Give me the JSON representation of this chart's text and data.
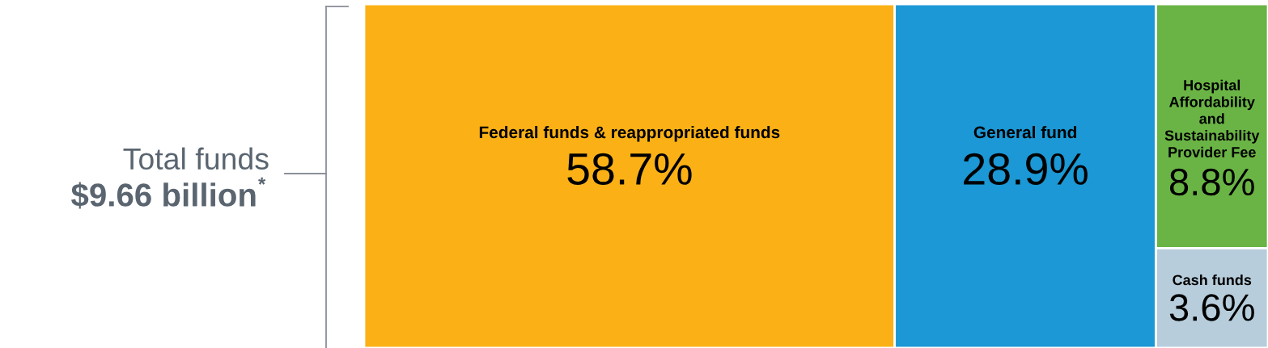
{
  "chart_data": {
    "type": "other",
    "title": "Total funds",
    "subtitle": "$9.66 billion$^{*}$",
    "categories": [
      "Federal funds & reappropriated funds",
      "General fund",
      "Hospital\nAffordability\nand\nSustainability\nProvider Fee",
      "Cash funds"
    ],
    "values": [
      58.7,
      28.9,
      8.8,
      3.6
    ],
    "value_labels": [
      "58.7%",
      "28.9%",
      "8.8%",
      "3.6%"
    ],
    "colors": [
      "#fbb116",
      "#1b98d5",
      "#6ab445",
      "#b7cddb"
    ]
  }
}
